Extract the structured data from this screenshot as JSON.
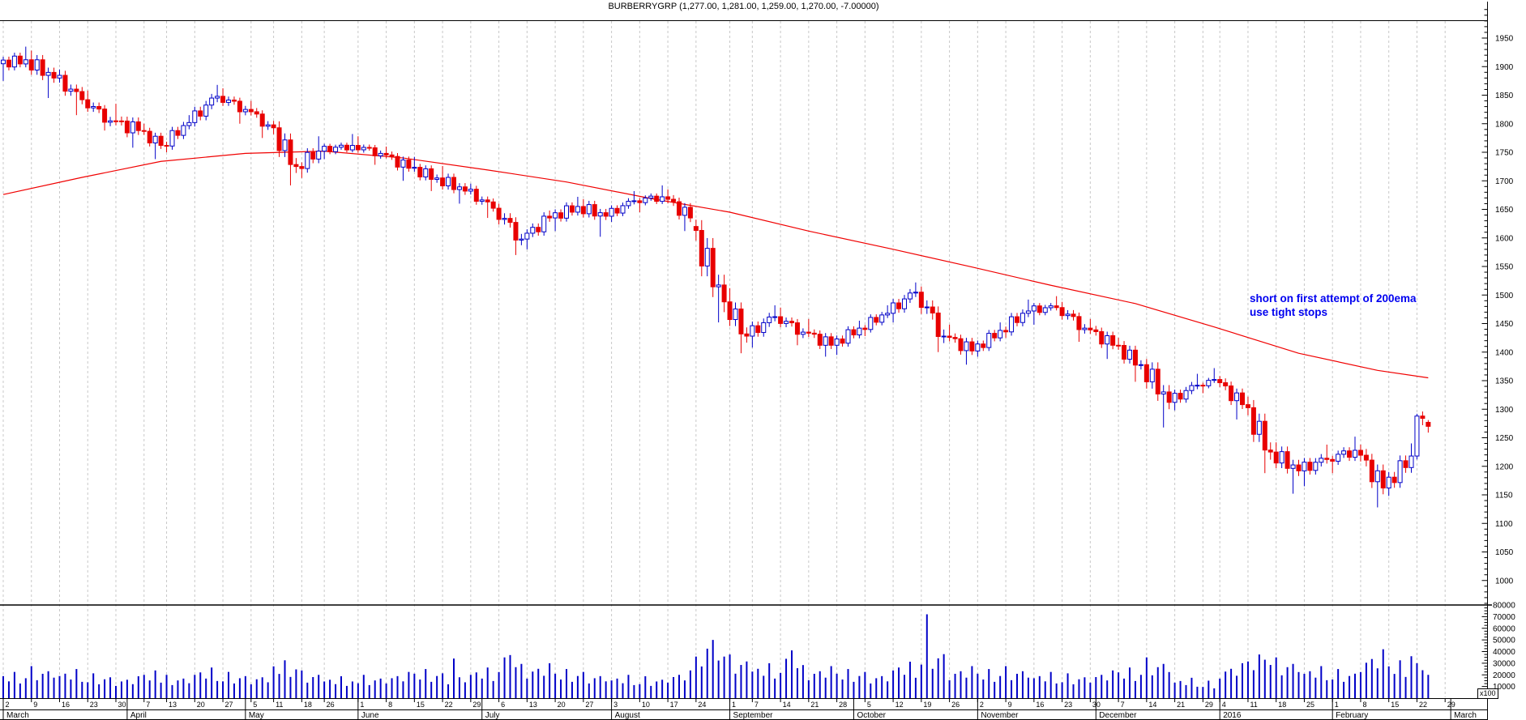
{
  "title": "BURBERRYGRP (1,277.00, 1,281.00, 1,259.00, 1,270.00, -7.00000)",
  "annotation": {
    "line1": "short on first attempt of 200ema",
    "line2": "use tight stops",
    "color": "#0000f0"
  },
  "colors": {
    "up_candle": "#0000c8",
    "down_candle": "#e80000",
    "ma_line": "#f00000",
    "volume_bar": "#0000c8",
    "grid": "#c8c8c8",
    "axis": "#000000"
  },
  "price_axis": {
    "top_label": 1950,
    "bottom_label": 1000,
    "step": 50,
    "minor_step": 10
  },
  "volume_axis": {
    "labels": [
      80000,
      70000,
      60000,
      50000,
      40000,
      30000,
      20000,
      10000
    ],
    "multiplier_label": "x100"
  },
  "x_axis": {
    "months": [
      {
        "name": "March",
        "days": 22,
        "ticks": [
          [
            "2",
            0
          ],
          [
            "9",
            5
          ],
          [
            "16",
            10
          ],
          [
            "23",
            15
          ],
          [
            "30",
            20
          ]
        ]
      },
      {
        "name": "April",
        "days": 21,
        "ticks": [
          [
            "7",
            3
          ],
          [
            "13",
            7
          ],
          [
            "20",
            12
          ],
          [
            "27",
            17
          ]
        ]
      },
      {
        "name": "May",
        "days": 20,
        "ticks": [
          [
            "5",
            1
          ],
          [
            "11",
            5
          ],
          [
            "18",
            10
          ],
          [
            "26",
            14
          ]
        ]
      },
      {
        "name": "June",
        "days": 22,
        "ticks": [
          [
            "1",
            0
          ],
          [
            "8",
            5
          ],
          [
            "15",
            10
          ],
          [
            "22",
            15
          ],
          [
            "29",
            20
          ]
        ]
      },
      {
        "name": "July",
        "days": 23,
        "ticks": [
          [
            "6",
            3
          ],
          [
            "13",
            8
          ],
          [
            "20",
            13
          ],
          [
            "27",
            18
          ]
        ]
      },
      {
        "name": "August",
        "days": 21,
        "ticks": [
          [
            "3",
            0
          ],
          [
            "10",
            5
          ],
          [
            "17",
            10
          ],
          [
            "24",
            15
          ]
        ]
      },
      {
        "name": "September",
        "days": 22,
        "ticks": [
          [
            "1",
            0
          ],
          [
            "7",
            4
          ],
          [
            "14",
            9
          ],
          [
            "21",
            14
          ],
          [
            "28",
            19
          ]
        ]
      },
      {
        "name": "October",
        "days": 22,
        "ticks": [
          [
            "5",
            2
          ],
          [
            "12",
            7
          ],
          [
            "19",
            12
          ],
          [
            "26",
            17
          ]
        ]
      },
      {
        "name": "November",
        "days": 21,
        "ticks": [
          [
            "2",
            0
          ],
          [
            "9",
            5
          ],
          [
            "16",
            10
          ],
          [
            "23",
            15
          ],
          [
            "30",
            20
          ]
        ]
      },
      {
        "name": "December",
        "days": 22,
        "ticks": [
          [
            "7",
            4
          ],
          [
            "14",
            9
          ],
          [
            "21",
            14
          ],
          [
            "29",
            19
          ]
        ]
      },
      {
        "name": "2016",
        "days": 20,
        "ticks": [
          [
            "4",
            0
          ],
          [
            "11",
            5
          ],
          [
            "18",
            10
          ],
          [
            "25",
            15
          ]
        ]
      },
      {
        "name": "February",
        "days": 21,
        "ticks": [
          [
            "1",
            0
          ],
          [
            "8",
            5
          ],
          [
            "15",
            10
          ],
          [
            "22",
            15
          ],
          [
            "29",
            20
          ]
        ]
      },
      {
        "name": "March",
        "days": 8,
        "ticks": []
      }
    ]
  },
  "chart_data": {
    "type": "candlestick",
    "instrument": "BURBERRYGRP",
    "timeframe": "daily",
    "x_range": "March 2015 - March 2016",
    "price_range": [
      1000,
      1950
    ],
    "volume_unit": "x100",
    "grid": "weekly dashed vertical",
    "legend_position": "none",
    "last_quote": {
      "open": 1277.0,
      "high": 1281.0,
      "low": 1259.0,
      "close": 1270.0,
      "change": -7.0
    },
    "overlay": {
      "name": "200ema",
      "color": "#f00000"
    },
    "weekly_ohlcv": [
      [
        0,
        1905,
        1935,
        1875,
        1912,
        18000
      ],
      [
        5,
        1912,
        1928,
        1845,
        1880,
        22000
      ],
      [
        10,
        1880,
        1895,
        1815,
        1842,
        20000
      ],
      [
        15,
        1842,
        1858,
        1788,
        1805,
        17000
      ],
      [
        20,
        1805,
        1835,
        1758,
        1788,
        15000
      ],
      [
        25,
        1788,
        1800,
        1738,
        1762,
        19000
      ],
      [
        29,
        1762,
        1815,
        1750,
        1802,
        16000
      ],
      [
        34,
        1802,
        1868,
        1795,
        1848,
        21000
      ],
      [
        39,
        1848,
        1862,
        1800,
        1825,
        18000
      ],
      [
        44,
        1825,
        1840,
        1775,
        1798,
        17000
      ],
      [
        48,
        1798,
        1805,
        1692,
        1725,
        26000
      ],
      [
        53,
        1725,
        1778,
        1705,
        1752,
        19000
      ],
      [
        57,
        1752,
        1782,
        1738,
        1762,
        15000
      ],
      [
        63,
        1762,
        1778,
        1728,
        1748,
        16000
      ],
      [
        68,
        1748,
        1760,
        1700,
        1722,
        18000
      ],
      [
        73,
        1722,
        1742,
        1682,
        1705,
        20000
      ],
      [
        78,
        1705,
        1726,
        1660,
        1682,
        17000
      ],
      [
        83,
        1682,
        1695,
        1635,
        1652,
        21000
      ],
      [
        88,
        1652,
        1660,
        1570,
        1598,
        28000
      ],
      [
        93,
        1598,
        1648,
        1580,
        1635,
        24000
      ],
      [
        98,
        1635,
        1672,
        1612,
        1655,
        20000
      ],
      [
        103,
        1655,
        1668,
        1602,
        1638,
        18000
      ],
      [
        108,
        1638,
        1682,
        1628,
        1665,
        16000
      ],
      [
        113,
        1665,
        1692,
        1645,
        1672,
        15000
      ],
      [
        118,
        1672,
        1685,
        1612,
        1635,
        19000
      ],
      [
        123,
        1620,
        1632,
        1452,
        1488,
        34000
      ],
      [
        129,
        1488,
        1512,
        1398,
        1428,
        30000
      ],
      [
        133,
        1428,
        1482,
        1408,
        1462,
        24000
      ],
      [
        138,
        1462,
        1478,
        1412,
        1435,
        27000
      ],
      [
        143,
        1435,
        1458,
        1392,
        1412,
        22000
      ],
      [
        148,
        1412,
        1455,
        1395,
        1442,
        20000
      ],
      [
        153,
        1442,
        1482,
        1428,
        1468,
        18000
      ],
      [
        158,
        1468,
        1522,
        1452,
        1505,
        25000
      ],
      [
        163,
        1505,
        1515,
        1400,
        1428,
        36000
      ],
      [
        168,
        1428,
        1448,
        1378,
        1402,
        22000
      ],
      [
        173,
        1402,
        1452,
        1392,
        1438,
        20000
      ],
      [
        178,
        1438,
        1492,
        1425,
        1472,
        22000
      ],
      [
        183,
        1472,
        1498,
        1448,
        1478,
        18000
      ],
      [
        188,
        1478,
        1488,
        1418,
        1442,
        17000
      ],
      [
        193,
        1442,
        1458,
        1388,
        1412,
        19000
      ],
      [
        198,
        1412,
        1425,
        1348,
        1378,
        21000
      ],
      [
        203,
        1378,
        1388,
        1268,
        1312,
        28000
      ],
      [
        208,
        1312,
        1362,
        1298,
        1342,
        14000
      ],
      [
        213,
        1342,
        1372,
        1328,
        1352,
        12000
      ],
      [
        216,
        1352,
        1358,
        1282,
        1308,
        24000
      ],
      [
        221,
        1308,
        1322,
        1188,
        1225,
        30000
      ],
      [
        226,
        1225,
        1242,
        1152,
        1192,
        28000
      ],
      [
        231,
        1192,
        1238,
        1165,
        1212,
        22000
      ],
      [
        236,
        1212,
        1252,
        1188,
        1228,
        20000
      ],
      [
        241,
        1228,
        1238,
        1128,
        1162,
        32000
      ],
      [
        246,
        1162,
        1240,
        1148,
        1218,
        26000
      ]
    ],
    "last_week_start_index": 251,
    "last_week_daily": [
      [
        1218,
        1292,
        1212,
        1288,
        30000
      ],
      [
        1288,
        1296,
        1272,
        1284,
        24000
      ],
      [
        1277,
        1281,
        1259,
        1270,
        20000
      ]
    ],
    "ma_points": [
      [
        0,
        1676
      ],
      [
        14,
        1706
      ],
      [
        28,
        1734
      ],
      [
        43,
        1748
      ],
      [
        57,
        1752
      ],
      [
        71,
        1740
      ],
      [
        86,
        1719
      ],
      [
        100,
        1698
      ],
      [
        115,
        1669
      ],
      [
        129,
        1645
      ],
      [
        143,
        1612
      ],
      [
        158,
        1580
      ],
      [
        172,
        1549
      ],
      [
        186,
        1517
      ],
      [
        201,
        1485
      ],
      [
        215,
        1444
      ],
      [
        230,
        1398
      ],
      [
        244,
        1368
      ],
      [
        253,
        1355
      ]
    ],
    "volume_spikes": {
      "80": 34000,
      "90": 37000,
      "126": 50000,
      "140": 41000,
      "164": 72000,
      "224": 33000,
      "245": 42000,
      "250": 36000
    }
  }
}
